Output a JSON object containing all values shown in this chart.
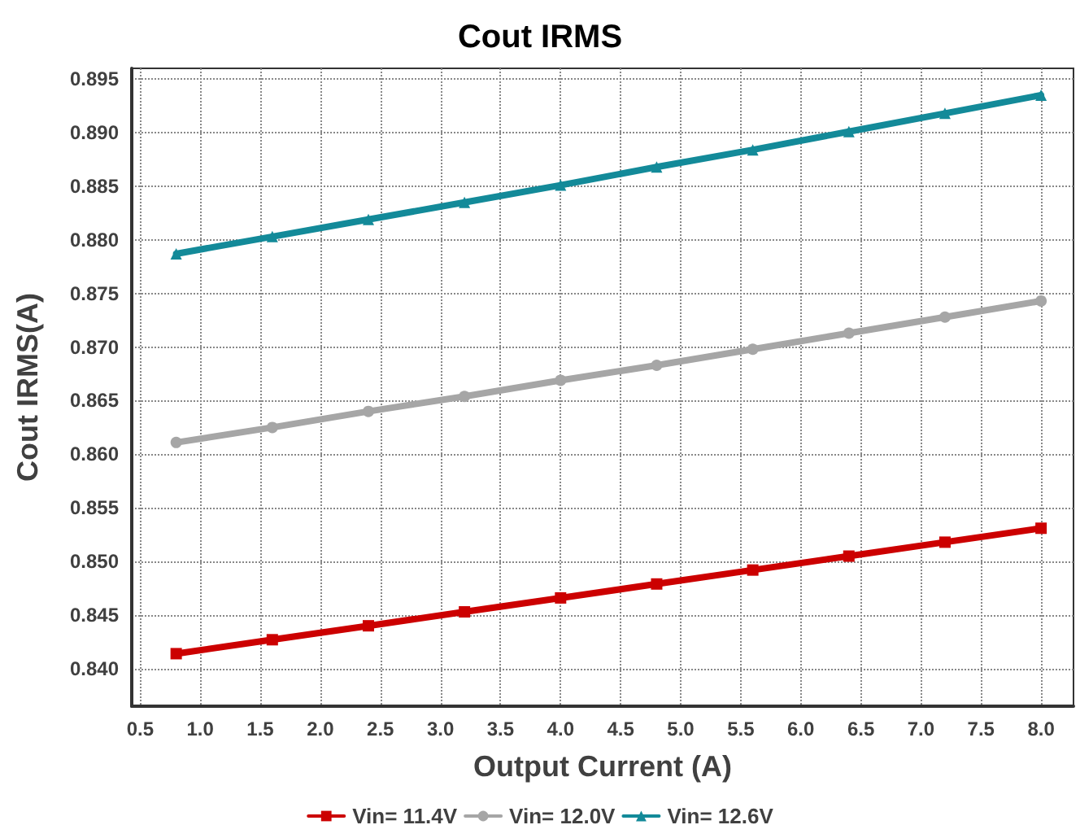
{
  "chart_data": {
    "type": "line",
    "title": "Cout IRMS",
    "xlabel": "Output Current (A)",
    "ylabel": "Cout IRMS(A)",
    "x": [
      0.8,
      1.6,
      2.4,
      3.2,
      4.0,
      4.8,
      5.6,
      6.4,
      7.2,
      8.0
    ],
    "series": [
      {
        "name": "Vin= 11.4V",
        "color": "#cc0000",
        "marker": "square",
        "values": [
          0.8414,
          0.8427,
          0.844,
          0.8453,
          0.8466,
          0.8479,
          0.8492,
          0.8505,
          0.8518,
          0.8531
        ]
      },
      {
        "name": "Vin= 12.0V",
        "color": "#a6a6a6",
        "marker": "circle",
        "values": [
          0.8611,
          0.8625,
          0.864,
          0.8654,
          0.8669,
          0.8683,
          0.8698,
          0.8713,
          0.8728,
          0.8743
        ]
      },
      {
        "name": "Vin= 12.6V",
        "color": "#138a99",
        "marker": "triangle",
        "values": [
          0.8787,
          0.8803,
          0.8819,
          0.8835,
          0.8851,
          0.8868,
          0.8884,
          0.8901,
          0.8918,
          0.8935
        ]
      }
    ],
    "xlim": [
      0.43,
      8.27
    ],
    "xticks": [
      {
        "value": 0.5,
        "label": "0.5"
      },
      {
        "value": 1,
        "label": "1.0"
      },
      {
        "value": 1.5,
        "label": "1.5"
      },
      {
        "value": 2,
        "label": "2.0"
      },
      {
        "value": 2.5,
        "label": "2.5"
      },
      {
        "value": 3,
        "label": "3.0"
      },
      {
        "value": 3.5,
        "label": "3.5"
      },
      {
        "value": 4,
        "label": "4.0"
      },
      {
        "value": 4.5,
        "label": "4.5"
      },
      {
        "value": 5,
        "label": "5.0"
      },
      {
        "value": 5.5,
        "label": "5.5"
      },
      {
        "value": 6,
        "label": "6.0"
      },
      {
        "value": 6.5,
        "label": "6.5"
      },
      {
        "value": 7,
        "label": "7.0"
      },
      {
        "value": 7.5,
        "label": "7.5"
      },
      {
        "value": 8,
        "label": "8.0"
      }
    ],
    "ylim": [
      0.8365,
      0.896
    ],
    "yticks": [
      {
        "value": 0.84,
        "label": "0.840"
      },
      {
        "value": 0.845,
        "label": "0.845"
      },
      {
        "value": 0.85,
        "label": "0.850"
      },
      {
        "value": 0.855,
        "label": "0.855"
      },
      {
        "value": 0.86,
        "label": "0.860"
      },
      {
        "value": 0.865,
        "label": "0.865"
      },
      {
        "value": 0.87,
        "label": "0.870"
      },
      {
        "value": 0.875,
        "label": "0.875"
      },
      {
        "value": 0.88,
        "label": "0.880"
      },
      {
        "value": 0.885,
        "label": "0.885"
      },
      {
        "value": 0.89,
        "label": "0.890"
      },
      {
        "value": 0.895,
        "label": "0.895"
      }
    ],
    "grid": true,
    "legend": "bottom",
    "line_style": "solid"
  }
}
